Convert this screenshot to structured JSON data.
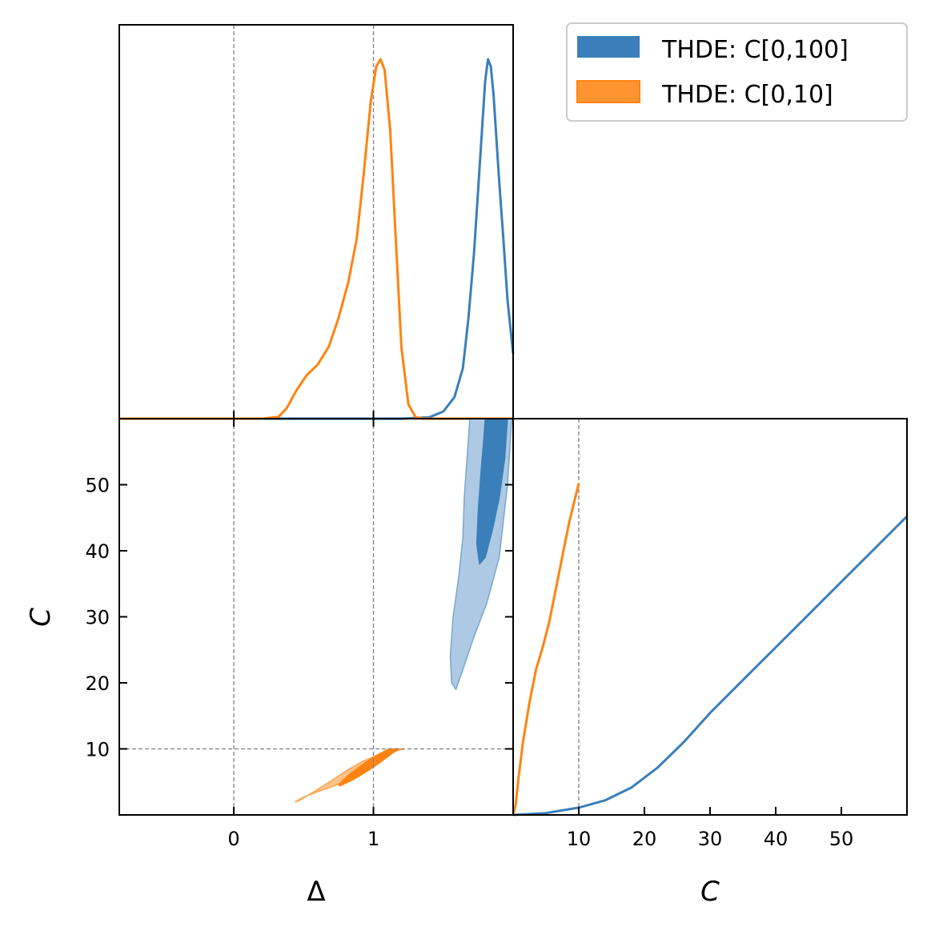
{
  "chart_data": {
    "type": "corner",
    "colors": {
      "blue": "#3a7fba",
      "blue_light": "#adc9e3",
      "orange": "#ff8310",
      "orange_light": "#ffc38c",
      "guide": "#808080"
    },
    "legend": [
      {
        "label": "THDE: C[0,100]",
        "color": "#3a7fba"
      },
      {
        "label": "THDE: C[0,10]",
        "color": "#ff8310"
      }
    ],
    "delta_marginal": {
      "xlim": [
        -0.82,
        2.0
      ],
      "xguides": [
        0,
        1
      ],
      "series": [
        {
          "name": "THDE: C[0,100]",
          "color": "#3a7fba",
          "x": [
            -0.82,
            1.2,
            1.4,
            1.5,
            1.58,
            1.64,
            1.68,
            1.72,
            1.75,
            1.78,
            1.8,
            1.82,
            1.84,
            1.86,
            1.88,
            1.9,
            1.93,
            1.96,
            2.0
          ],
          "y": [
            0.0,
            0.0,
            0.004,
            0.02,
            0.06,
            0.14,
            0.28,
            0.46,
            0.64,
            0.82,
            0.94,
            1.0,
            0.98,
            0.9,
            0.78,
            0.66,
            0.5,
            0.33,
            0.18
          ]
        },
        {
          "name": "THDE: C[0,10]",
          "color": "#ff8310",
          "x": [
            -0.82,
            0.2,
            0.32,
            0.38,
            0.45,
            0.52,
            0.6,
            0.68,
            0.75,
            0.82,
            0.88,
            0.93,
            0.98,
            1.02,
            1.05,
            1.08,
            1.12,
            1.16,
            1.2,
            1.25,
            1.3,
            1.35,
            2.0
          ],
          "y": [
            0.0,
            0.0,
            0.005,
            0.03,
            0.08,
            0.12,
            0.15,
            0.2,
            0.28,
            0.38,
            0.5,
            0.68,
            0.88,
            0.98,
            1.0,
            0.97,
            0.8,
            0.5,
            0.2,
            0.04,
            0.005,
            0.0,
            0.0
          ]
        }
      ]
    },
    "c_marginal": {
      "xlim": [
        0,
        60
      ],
      "xticks": [
        10,
        20,
        30,
        40,
        50
      ],
      "xguides": [
        10
      ],
      "series": [
        {
          "name": "THDE: C[0,100]",
          "color": "#3a7fba",
          "x": [
            0,
            5,
            10,
            14,
            18,
            22,
            26,
            30,
            35,
            40,
            45,
            50,
            55,
            60
          ],
          "y": [
            0.0,
            0.005,
            0.02,
            0.04,
            0.075,
            0.13,
            0.2,
            0.28,
            0.37,
            0.46,
            0.55,
            0.64,
            0.73,
            0.82
          ]
        },
        {
          "name": "THDE: C[0,10]",
          "color": "#ff8310",
          "x": [
            0,
            0.4,
            0.8,
            1.5,
            2.5,
            3.5,
            4.5,
            5.5,
            6.5,
            7.5,
            8.5,
            9.3,
            10
          ],
          "y": [
            0.0,
            0.03,
            0.1,
            0.2,
            0.31,
            0.4,
            0.46,
            0.53,
            0.62,
            0.71,
            0.8,
            0.86,
            0.91
          ]
        }
      ]
    },
    "joint": {
      "xlim": [
        -0.82,
        2.0
      ],
      "ylim": [
        0,
        60
      ],
      "xticks": [
        0,
        1
      ],
      "yticks": [
        10,
        20,
        30,
        40,
        50
      ],
      "xguides": [
        0,
        1
      ],
      "yguides": [
        10
      ],
      "xlabel": "Δ",
      "ylabel": "C",
      "contours": [
        {
          "name": "THDE: C[0,100] 95%",
          "color": "#adc9e3",
          "stroke": "#7aa6d0",
          "points": [
            [
              1.69,
              60
            ],
            [
              1.99,
              60
            ],
            [
              1.96,
              50
            ],
            [
              1.9,
              39
            ],
            [
              1.81,
              32
            ],
            [
              1.72,
              27
            ],
            [
              1.64,
              22
            ],
            [
              1.59,
              19
            ],
            [
              1.56,
              20
            ],
            [
              1.55,
              24
            ],
            [
              1.57,
              30
            ],
            [
              1.61,
              36
            ],
            [
              1.64,
              42
            ],
            [
              1.65,
              48
            ],
            [
              1.67,
              54
            ]
          ]
        },
        {
          "name": "THDE: C[0,100] 68%",
          "color": "#3a7fba",
          "stroke": "#3a7fba",
          "points": [
            [
              1.8,
              60
            ],
            [
              1.96,
              60
            ],
            [
              1.94,
              54
            ],
            [
              1.9,
              48
            ],
            [
              1.85,
              43
            ],
            [
              1.8,
              39
            ],
            [
              1.76,
              38
            ],
            [
              1.74,
              41
            ],
            [
              1.75,
              46
            ],
            [
              1.77,
              52
            ],
            [
              1.79,
              57
            ]
          ]
        },
        {
          "name": "THDE: C[0,10] 95%",
          "color": "#ffc38c",
          "stroke": "#ffa550",
          "points": [
            [
              0.44,
              2.0
            ],
            [
              0.5,
              2.7
            ],
            [
              0.6,
              3.5
            ],
            [
              0.72,
              4.4
            ],
            [
              0.85,
              5.6
            ],
            [
              0.97,
              7.0
            ],
            [
              1.07,
              8.4
            ],
            [
              1.15,
              9.6
            ],
            [
              1.22,
              10.0
            ],
            [
              1.16,
              10.0
            ],
            [
              1.05,
              9.2
            ],
            [
              0.93,
              8.2
            ],
            [
              0.82,
              6.9
            ],
            [
              0.7,
              5.2
            ],
            [
              0.58,
              3.6
            ],
            [
              0.47,
              2.2
            ]
          ]
        },
        {
          "name": "THDE: C[0,10] 68%",
          "color": "#ff8310",
          "stroke": "#ff8310",
          "points": [
            [
              0.76,
              4.4
            ],
            [
              0.86,
              5.4
            ],
            [
              0.96,
              6.7
            ],
            [
              1.05,
              8.0
            ],
            [
              1.12,
              9.1
            ],
            [
              1.18,
              10.0
            ],
            [
              1.11,
              10.0
            ],
            [
              1.02,
              9.0
            ],
            [
              0.92,
              7.6
            ],
            [
              0.82,
              6.0
            ],
            [
              0.75,
              4.6
            ]
          ]
        }
      ]
    }
  }
}
